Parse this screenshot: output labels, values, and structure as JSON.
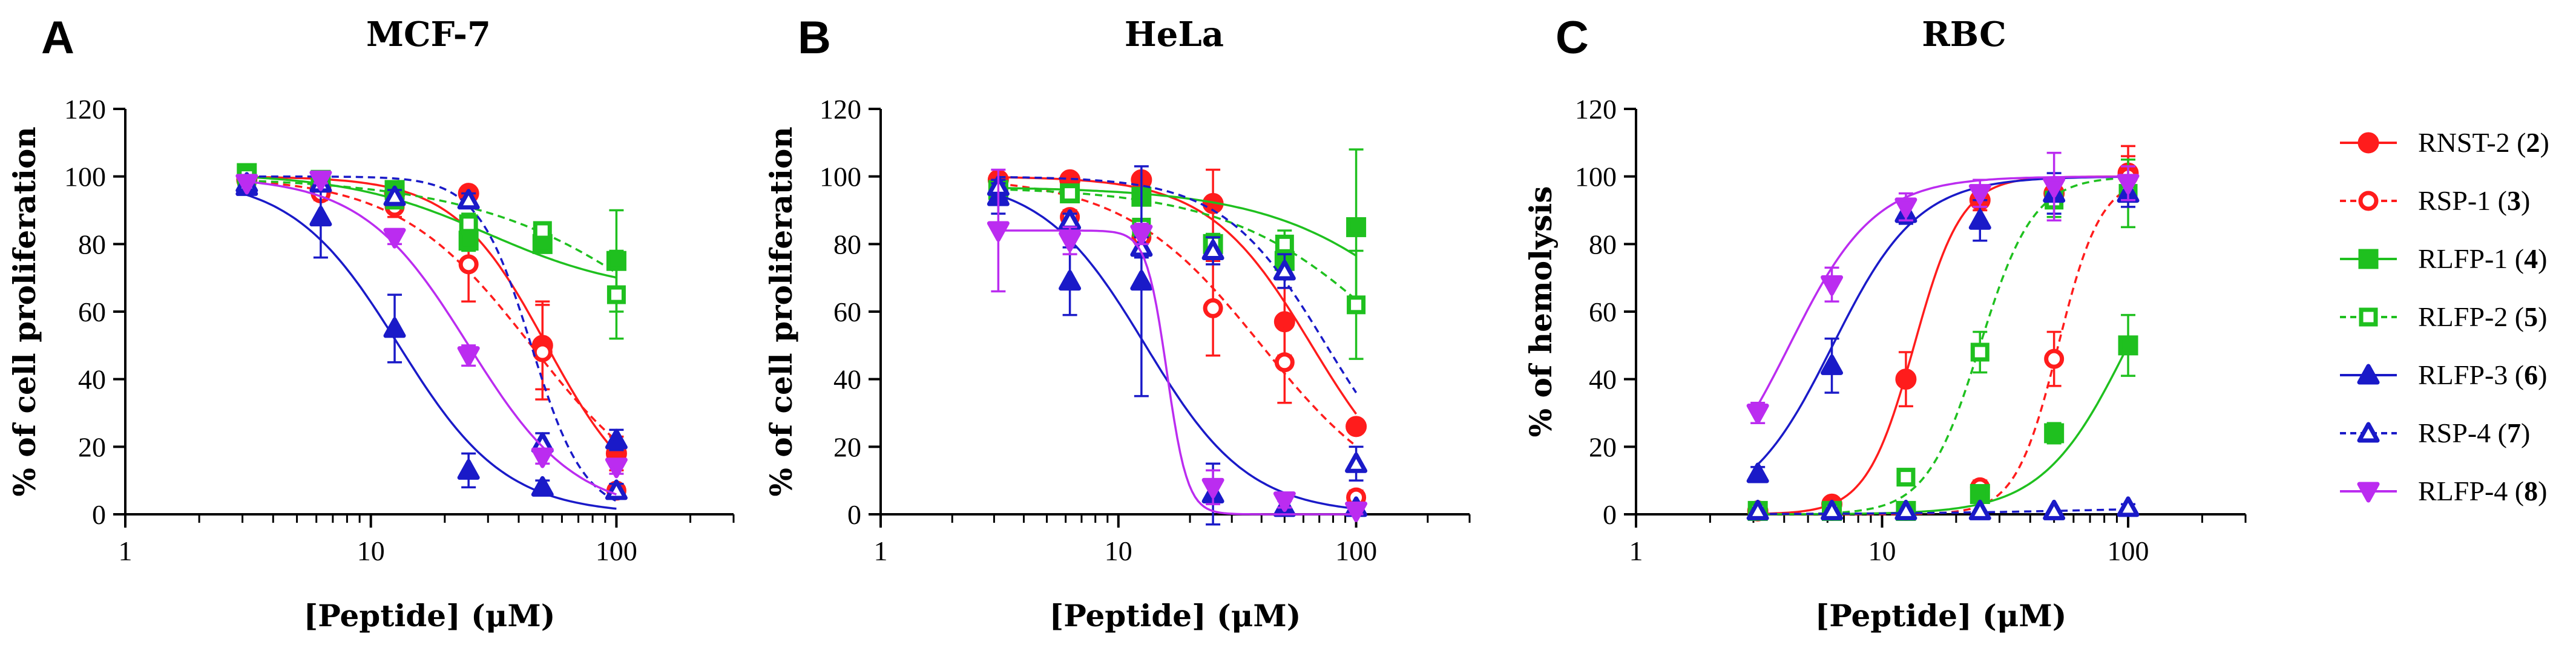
{
  "chart_data": [
    {
      "type": "scatter",
      "panel": "A",
      "title": "MCF-7",
      "xlabel": "[Peptide] (μM)",
      "ylabel": "% of cell proliferation",
      "xscale": "log",
      "xlim": [
        1,
        300
      ],
      "ylim": [
        0,
        120
      ],
      "xticks": [
        1,
        10,
        100
      ],
      "yticks": [
        0,
        20,
        40,
        60,
        80,
        100,
        120
      ],
      "x": [
        3.125,
        6.25,
        12.5,
        25,
        50,
        100
      ],
      "series": [
        {
          "key": "rnst2",
          "name": "RNST-2 (2)",
          "values": [
            99,
            97,
            95,
            95,
            50,
            18
          ],
          "errors": [
            0,
            1,
            2,
            2,
            13,
            5
          ],
          "curve": {
            "top": 100,
            "bottom": 0,
            "ic50": 52,
            "hill": 2.3
          }
        },
        {
          "key": "rsp1",
          "name": "RSP-1 (3)",
          "values": [
            99,
            95,
            91,
            74,
            48,
            7
          ],
          "errors": [
            0,
            2,
            3,
            11,
            14,
            2
          ],
          "curve": {
            "top": 100,
            "bottom": 0,
            "ic50": 45,
            "hill": 1.6
          }
        },
        {
          "key": "rlfp1",
          "name": "RLFP-1 (4)",
          "values": [
            101,
            99,
            96,
            81,
            80,
            75
          ],
          "errors": [
            0,
            1,
            2,
            3,
            2,
            15
          ],
          "curve": {
            "top": 101,
            "bottom": 65,
            "ic50": 30,
            "hill": 1.5
          }
        },
        {
          "key": "rlfp2",
          "name": "RLFP-2 (5)",
          "values": [
            100,
            99,
            93,
            86,
            84,
            65
          ],
          "errors": [
            0,
            1,
            2,
            3,
            2,
            13
          ],
          "curve": {
            "top": 100,
            "bottom": 0,
            "ic50": 250,
            "hill": 1.0
          }
        },
        {
          "key": "rlfp3",
          "name": "RLFP-3 (6)",
          "values": [
            97,
            88,
            55,
            13,
            8,
            22
          ],
          "errors": [
            2,
            12,
            10,
            5,
            2,
            3
          ],
          "curve": {
            "top": 100,
            "bottom": 0,
            "ic50": 13,
            "hill": 2.0
          }
        },
        {
          "key": "rsp4",
          "name": "RSP-4 (7)",
          "values": [
            98,
            98,
            94,
            93,
            21,
            7
          ],
          "errors": [
            0,
            1,
            2,
            2,
            3,
            2
          ],
          "curve": {
            "top": 100,
            "bottom": 0,
            "ic50": 45,
            "hill": 4.0
          }
        },
        {
          "key": "rlfp4",
          "name": "RLFP-4 (8)",
          "values": [
            98,
            99,
            82,
            47,
            17,
            14
          ],
          "errors": [
            0,
            1,
            2,
            3,
            2,
            2
          ],
          "curve": {
            "top": 100,
            "bottom": 0,
            "ic50": 25,
            "hill": 2.0
          }
        }
      ]
    },
    {
      "type": "scatter",
      "panel": "B",
      "title": "HeLa",
      "xlabel": "[Peptide] (μM)",
      "ylabel": "% of cell proliferation",
      "xscale": "log",
      "xlim": [
        1,
        300
      ],
      "ylim": [
        0,
        120
      ],
      "xticks": [
        1,
        10,
        100
      ],
      "yticks": [
        0,
        20,
        40,
        60,
        80,
        100,
        120
      ],
      "x": [
        3.125,
        6.25,
        12.5,
        25,
        50,
        100
      ],
      "series": [
        {
          "key": "rnst2",
          "name": "RNST-2 (2)",
          "values": [
            99,
            99,
            99,
            92,
            57,
            26
          ],
          "errors": [
            1,
            1,
            2,
            10,
            10,
            2
          ],
          "curve": {
            "top": 100,
            "bottom": 0,
            "ic50": 65,
            "hill": 2.0
          }
        },
        {
          "key": "rsp1",
          "name": "RSP-1 (3)",
          "values": [
            95,
            88,
            82,
            61,
            45,
            5
          ],
          "errors": [
            2,
            2,
            5,
            14,
            12,
            2
          ],
          "curve": {
            "top": 100,
            "bottom": 0,
            "ic50": 40,
            "hill": 1.5
          }
        },
        {
          "key": "rlfp1",
          "name": "RLFP-1 (4)",
          "values": [
            96,
            95,
            94,
            80,
            75,
            85
          ],
          "errors": [
            1,
            2,
            2,
            3,
            3,
            23
          ],
          "curve": {
            "top": 97,
            "bottom": 0,
            "ic50": 300,
            "hill": 1.2
          }
        },
        {
          "key": "rlfp2",
          "name": "RLFP-2 (5)",
          "values": [
            96,
            95,
            85,
            80,
            80,
            62
          ],
          "errors": [
            1,
            2,
            2,
            3,
            4,
            16
          ],
          "curve": {
            "top": 97,
            "bottom": 0,
            "ic50": 170,
            "hill": 1.2
          }
        },
        {
          "key": "rlfp3",
          "name": "RLFP-3 (6)",
          "values": [
            94,
            69,
            69,
            6,
            2,
            2
          ],
          "errors": [
            5,
            10,
            34,
            9,
            2,
            1
          ],
          "curve": {
            "top": 100,
            "bottom": 0,
            "ic50": 13,
            "hill": 2.0
          }
        },
        {
          "key": "rsp4",
          "name": "RSP-4 (7)",
          "values": [
            97,
            87,
            79,
            78,
            72,
            15
          ],
          "errors": [
            1,
            2,
            3,
            4,
            5,
            5
          ],
          "curve": {
            "top": 100,
            "bottom": 0,
            "ic50": 75,
            "hill": 2.0
          }
        },
        {
          "key": "rlfp4",
          "name": "RLFP-4 (8)",
          "values": [
            84,
            81,
            83,
            8,
            4,
            1
          ],
          "errors": [
            18,
            4,
            3,
            5,
            2,
            1
          ],
          "curve": {
            "top": 84,
            "bottom": 0,
            "ic50": 16,
            "hill": 10.0
          }
        }
      ]
    },
    {
      "type": "scatter",
      "panel": "C",
      "title": "RBC",
      "xlabel": "[Peptide] (μM)",
      "ylabel": "% of hemolysis",
      "xscale": "log",
      "xlim": [
        1,
        300
      ],
      "ylim": [
        0,
        120
      ],
      "xticks": [
        1,
        10,
        100
      ],
      "yticks": [
        0,
        20,
        40,
        60,
        80,
        100,
        120
      ],
      "x": [
        3.125,
        6.25,
        12.5,
        25,
        50,
        100
      ],
      "series": [
        {
          "key": "rnst2",
          "name": "RNST-2 (2)",
          "values": [
            1,
            3,
            40,
            93,
            95,
            101
          ],
          "errors": [
            1,
            1,
            8,
            3,
            4,
            8
          ],
          "curve": {
            "bottom": 0,
            "top": 100,
            "ec50": 13.5,
            "hill": 4.5
          }
        },
        {
          "key": "rsp1",
          "name": "RSP-1 (3)",
          "values": [
            1,
            1,
            1,
            8,
            46,
            100
          ],
          "errors": [
            0,
            0,
            1,
            2,
            8,
            6
          ],
          "curve": {
            "bottom": 0,
            "top": 100,
            "ec50": 52,
            "hill": 5.0
          }
        },
        {
          "key": "rlfp1",
          "name": "RLFP-1 (4)",
          "values": [
            1,
            1,
            1,
            6,
            24,
            50
          ],
          "errors": [
            0,
            0,
            1,
            1,
            3,
            9
          ],
          "curve": {
            "bottom": 0,
            "top": 100,
            "ec50": 100,
            "hill": 2.5
          }
        },
        {
          "key": "rlfp2",
          "name": "RLFP-2 (5)",
          "values": [
            1,
            1,
            11,
            48,
            93,
            95
          ],
          "errors": [
            0,
            0,
            2,
            6,
            5,
            10
          ],
          "curve": {
            "bottom": 0,
            "top": 100,
            "ec50": 25,
            "hill": 4.0
          }
        },
        {
          "key": "rlfp3",
          "name": "RLFP-3 (6)",
          "values": [
            12,
            44,
            89,
            87,
            95,
            95
          ],
          "errors": [
            2,
            8,
            3,
            6,
            6,
            4
          ],
          "curve": {
            "bottom": 0,
            "top": 100,
            "ec50": 6.3,
            "hill": 2.5
          }
        },
        {
          "key": "rsp4",
          "name": "RSP-4 (7)",
          "values": [
            1,
            1,
            1,
            1,
            1,
            2
          ],
          "errors": [
            0,
            0,
            0,
            0,
            0,
            1
          ],
          "curve": {
            "bottom": 0,
            "top": 3,
            "ec50": 100,
            "hill": 1.0
          }
        },
        {
          "key": "rlfp4",
          "name": "RLFP-4 (8)",
          "values": [
            30,
            68,
            91,
            95,
            97,
            98
          ],
          "errors": [
            3,
            5,
            4,
            4,
            10,
            5
          ],
          "curve": {
            "bottom": 0,
            "top": 100,
            "ec50": 4.2,
            "hill": 2.5
          }
        }
      ]
    }
  ],
  "legend": [
    {
      "key": "rnst2",
      "name_main": "RNST-2 (",
      "name_num": "2",
      "name_end": ")",
      "color": "#ff1c1c",
      "marker": "circle",
      "filled": true,
      "dashed": false
    },
    {
      "key": "rsp1",
      "name_main": "RSP-1 (",
      "name_num": "3",
      "name_end": ")",
      "color": "#ff1c1c",
      "marker": "circle",
      "filled": false,
      "dashed": true
    },
    {
      "key": "rlfp1",
      "name_main": "RLFP-1 (",
      "name_num": "4",
      "name_end": ")",
      "color": "#1fc01f",
      "marker": "square",
      "filled": true,
      "dashed": false
    },
    {
      "key": "rlfp2",
      "name_main": "RLFP-2 (",
      "name_num": "5",
      "name_end": ")",
      "color": "#1fc01f",
      "marker": "square",
      "filled": false,
      "dashed": true
    },
    {
      "key": "rlfp3",
      "name_main": "RLFP-3 (",
      "name_num": "6",
      "name_end": ")",
      "color": "#1a1ac8",
      "marker": "triangle",
      "filled": true,
      "dashed": false
    },
    {
      "key": "rsp4",
      "name_main": "RSP-4 (",
      "name_num": "7",
      "name_end": ")",
      "color": "#1a1ac8",
      "marker": "triangle",
      "filled": false,
      "dashed": true
    },
    {
      "key": "rlfp4",
      "name_main": "RLFP-4 (",
      "name_num": "8",
      "name_end": ")",
      "color": "#bb2cf0",
      "marker": "triangle-down",
      "filled": true,
      "dashed": false
    }
  ]
}
